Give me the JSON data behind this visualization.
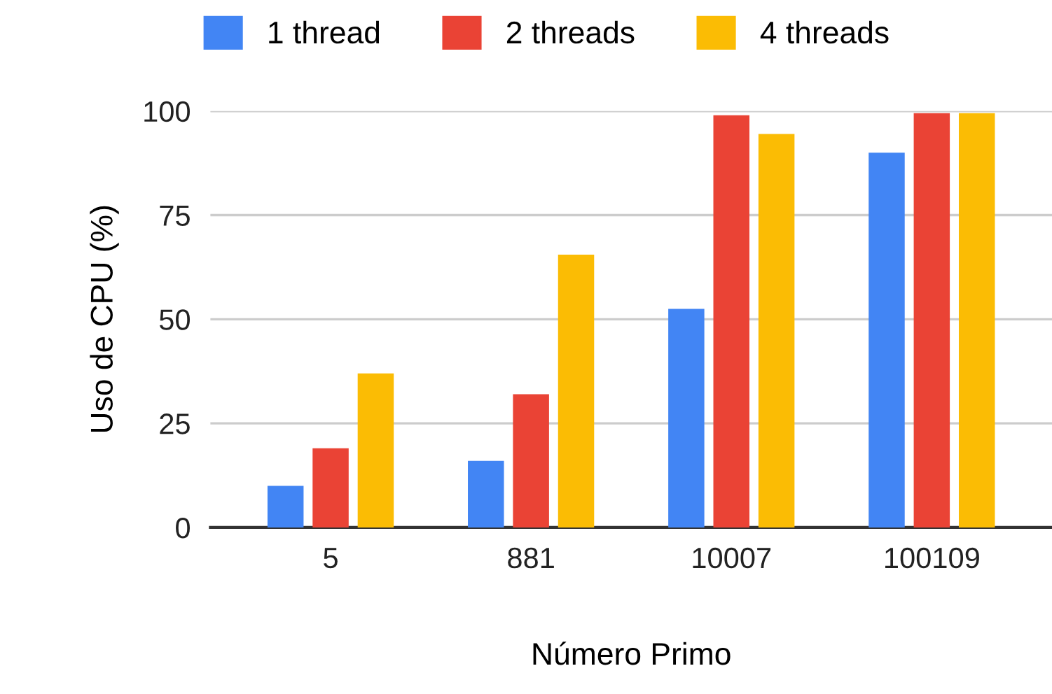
{
  "chart_data": {
    "type": "bar",
    "xlabel": "Número Primo",
    "ylabel": "Uso de CPU (%)",
    "categories": [
      "5",
      "881",
      "10007",
      "100109"
    ],
    "series": [
      {
        "name": "1 thread",
        "color": "#4285f4",
        "values": [
          10,
          16,
          52.5,
          90
        ]
      },
      {
        "name": "2 threads",
        "color": "#ea4335",
        "values": [
          19,
          32,
          99,
          99.5
        ]
      },
      {
        "name": "4 threads",
        "color": "#fbbc04",
        "values": [
          37,
          65.5,
          94.5,
          99.5
        ]
      }
    ],
    "ylim": [
      0,
      100
    ],
    "yticks": [
      0,
      25,
      50,
      75,
      100
    ],
    "grid": "y",
    "legend": "top"
  }
}
